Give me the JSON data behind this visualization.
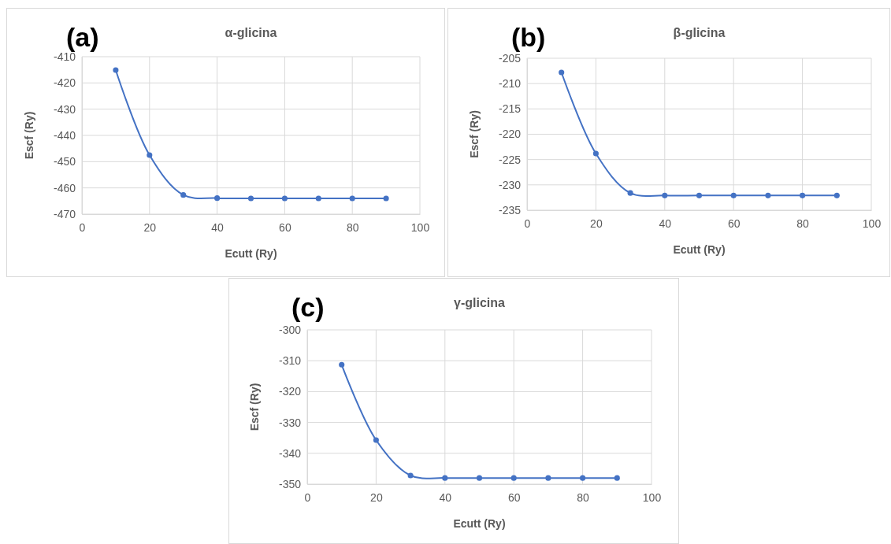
{
  "chart_data": [
    {
      "type": "line",
      "title": "α-glicina",
      "xlabel": "Ecutt (Ry)",
      "ylabel": "Escf (Ry)",
      "annotations": [
        "(a)"
      ],
      "x": [
        10,
        20,
        30,
        40,
        50,
        60,
        70,
        80,
        90
      ],
      "series": [
        {
          "color": "#4472c4",
          "values": [
            -415.1,
            -447.5,
            -462.7,
            -463.9,
            -464.0,
            -464.0,
            -464.0,
            -464.0,
            -464.0
          ]
        }
      ],
      "xlim": [
        0,
        100
      ],
      "xticks": [
        0,
        20,
        40,
        60,
        80,
        100
      ],
      "ylim": [
        -470,
        -410
      ],
      "yticks": [
        -470,
        -460,
        -450,
        -440,
        -430,
        -420,
        -410
      ],
      "grid": true,
      "marker": "circle",
      "line_style": "solid"
    },
    {
      "type": "line",
      "title": "β-glicina",
      "xlabel": "Ecutt (Ry)",
      "ylabel": "Escf (Ry)",
      "annotations": [
        "(b)"
      ],
      "x": [
        10,
        20,
        30,
        40,
        50,
        60,
        70,
        80,
        90
      ],
      "series": [
        {
          "color": "#4472c4",
          "values": [
            -207.8,
            -223.8,
            -231.6,
            -232.1,
            -232.1,
            -232.1,
            -232.1,
            -232.1,
            -232.1
          ]
        }
      ],
      "xlim": [
        0,
        100
      ],
      "xticks": [
        0,
        20,
        40,
        60,
        80,
        100
      ],
      "ylim": [
        -235,
        -205
      ],
      "yticks": [
        -235,
        -230,
        -225,
        -220,
        -215,
        -210,
        -205
      ],
      "grid": true,
      "marker": "circle",
      "line_style": "solid"
    },
    {
      "type": "line",
      "title": "γ-glicina",
      "xlabel": "Ecutt (Ry)",
      "ylabel": "Escf (Ry)",
      "annotations": [
        "(c)"
      ],
      "x": [
        10,
        20,
        30,
        40,
        50,
        60,
        70,
        80,
        90
      ],
      "series": [
        {
          "color": "#4472c4",
          "values": [
            -311.3,
            -335.7,
            -347.2,
            -348.0,
            -348.0,
            -348.0,
            -348.0,
            -348.0,
            -348.0
          ]
        }
      ],
      "xlim": [
        0,
        100
      ],
      "xticks": [
        0,
        20,
        40,
        60,
        80,
        100
      ],
      "ylim": [
        -350,
        -300
      ],
      "yticks": [
        -350,
        -340,
        -330,
        -320,
        -310,
        -300
      ],
      "grid": true,
      "marker": "circle",
      "line_style": "solid"
    }
  ]
}
